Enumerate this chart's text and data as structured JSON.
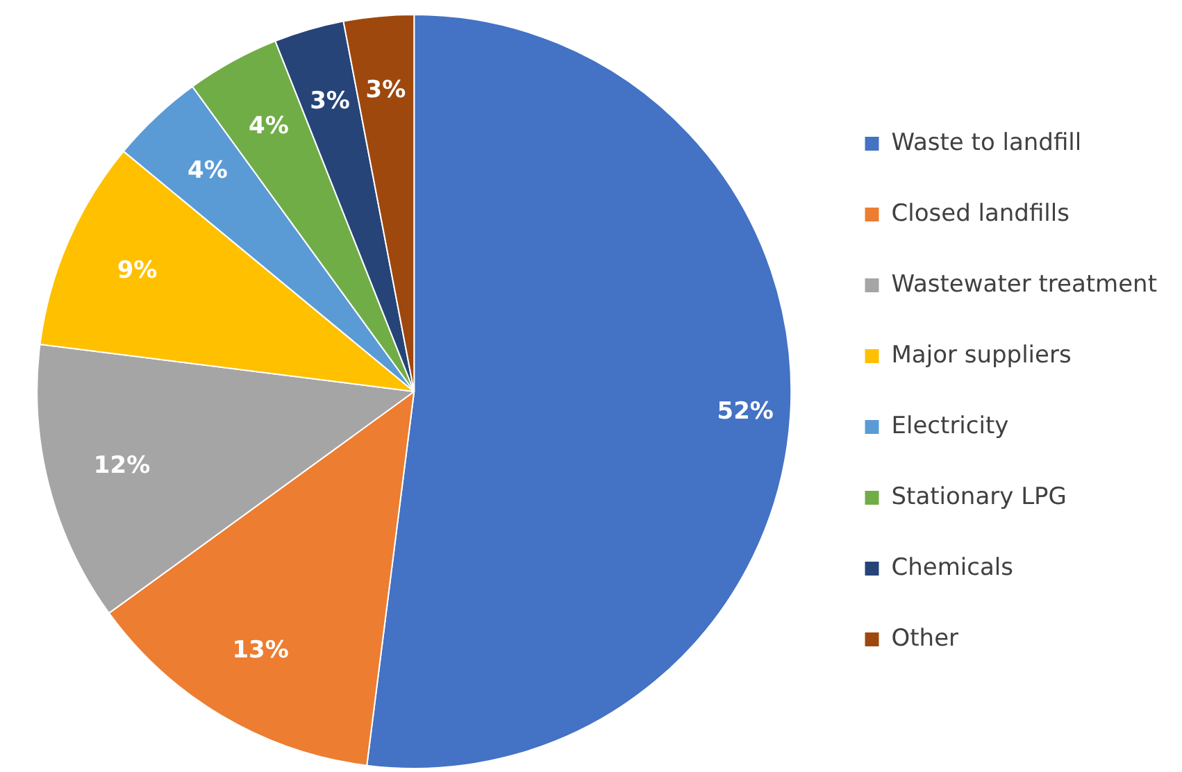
{
  "chart_data": {
    "type": "pie",
    "categories": [
      "Waste to landfill",
      "Closed landfills",
      "Wastewater treatment",
      "Major suppliers",
      "Electricity",
      "Stationary LPG",
      "Chemicals",
      "Other"
    ],
    "values": [
      52,
      13,
      12,
      9,
      4,
      4,
      3,
      3
    ],
    "colors": [
      "#4472c4",
      "#ed7d31",
      "#a5a5a5",
      "#ffc000",
      "#5b9bd5",
      "#70ad47",
      "#264478",
      "#9e480e"
    ],
    "value_labels": [
      "52%",
      "13%",
      "12%",
      "9%",
      "4%",
      "4%",
      "3%",
      "3%"
    ],
    "legend": "right"
  }
}
